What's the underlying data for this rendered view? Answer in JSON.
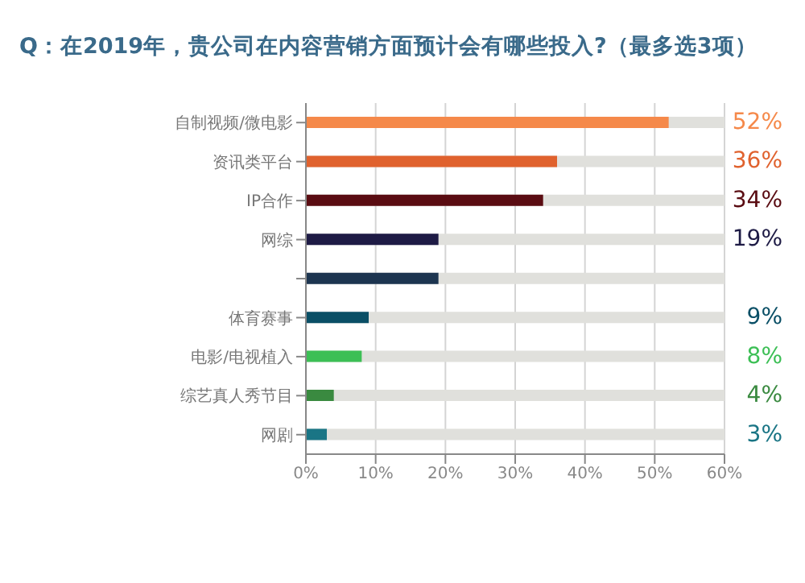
{
  "chart_data": {
    "type": "bar",
    "orientation": "horizontal",
    "title": "Q：在2019年，贵公司在内容营销方面预计会有哪些投入?（最多选3项）",
    "categories": [
      "自制视频/微电影",
      "资讯类平台",
      "IP合作",
      "网综",
      null,
      "体育赛事",
      "电影/电视植入",
      "综艺真人秀节目",
      "网剧"
    ],
    "values": [
      52,
      36,
      34,
      19,
      19,
      9,
      8,
      4,
      3
    ],
    "colors": [
      "#f5894a",
      "#e0622e",
      "#5a0c12",
      "#1e1b45",
      "#1d3550",
      "#0a4f66",
      "#3cbf55",
      "#3a8a40",
      "#1a7585"
    ],
    "value_labels": [
      "52%",
      "36%",
      "34%",
      "19%",
      null,
      "9%",
      "8%",
      "4%",
      "3%"
    ],
    "xlim": [
      0,
      60
    ],
    "xticks": [
      {
        "value": 0,
        "label": "0%"
      },
      {
        "value": 10,
        "label": "10%"
      },
      {
        "value": 20,
        "label": "20%"
      },
      {
        "value": 30,
        "label": "30%"
      },
      {
        "value": 40,
        "label": "40%"
      },
      {
        "value": 50,
        "label": "50%"
      },
      {
        "value": 60,
        "label": "60%"
      }
    ],
    "grid": "x"
  }
}
